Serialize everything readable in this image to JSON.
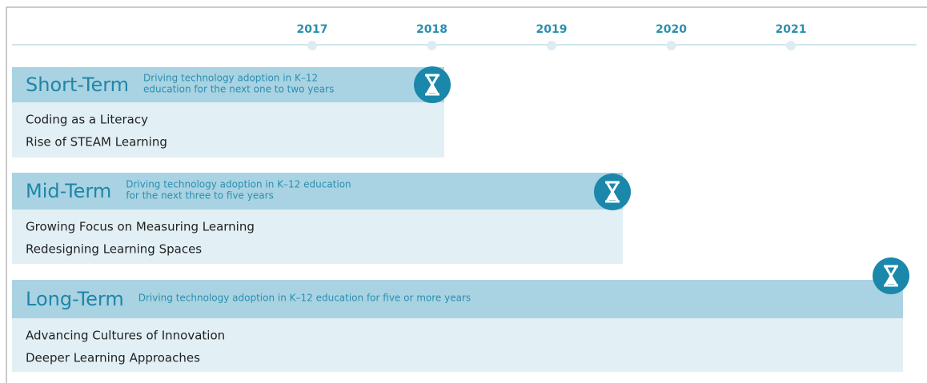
{
  "timeline": {
    "years": [
      "2017",
      "2018",
      "2019",
      "2020",
      "2021"
    ]
  },
  "horizons": [
    {
      "title": "Short-Term",
      "description": [
        "Driving technology adoption in K–12",
        "education for the next one to two years"
      ],
      "items": [
        "Coding as a Literacy",
        "Rise of STEAM Learning"
      ]
    },
    {
      "title": "Mid-Term",
      "description": [
        "Driving technology adoption in K–12 education",
        "for the next three to five years"
      ],
      "items": [
        "Growing Focus on Measuring Learning",
        "Redesigning Learning Spaces"
      ]
    },
    {
      "title": "Long-Term",
      "description": [
        "Driving technology adoption in K–12 education for five or more years"
      ],
      "items": [
        "Advancing Cultures of Innovation",
        "Deeper Learning Approaches"
      ]
    }
  ]
}
